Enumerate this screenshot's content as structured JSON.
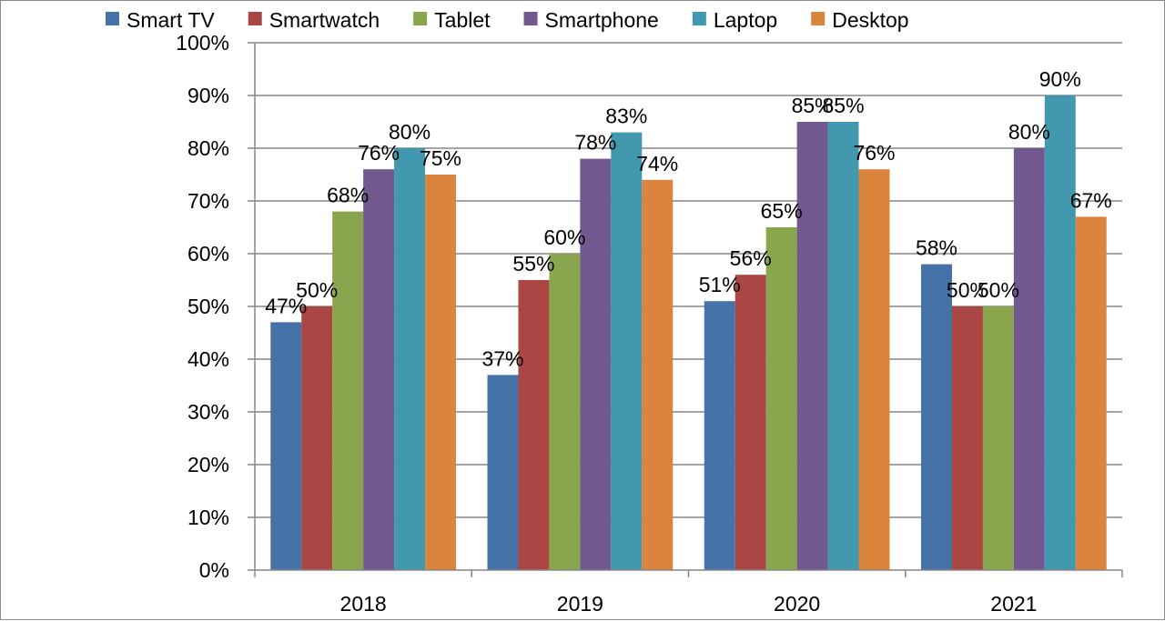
{
  "chart_data": {
    "type": "bar",
    "categories": [
      "2018",
      "2019",
      "2020",
      "2021"
    ],
    "series": [
      {
        "name": "Smart TV",
        "color": "#4572A7",
        "values": [
          47,
          37,
          51,
          58
        ],
        "labels": [
          "47%",
          "37%",
          "51%",
          "58%"
        ]
      },
      {
        "name": "Smartwatch",
        "color": "#AA4643",
        "values": [
          50,
          55,
          56,
          50
        ],
        "labels": [
          "50%",
          "55%",
          "56%",
          "50%"
        ]
      },
      {
        "name": "Tablet",
        "color": "#89A54E",
        "values": [
          68,
          60,
          65,
          50
        ],
        "labels": [
          "68%",
          "60%",
          "65%",
          "50%"
        ]
      },
      {
        "name": "Smartphone",
        "color": "#71588F",
        "values": [
          76,
          78,
          85,
          80
        ],
        "labels": [
          "76%",
          "78%",
          "85%",
          "80%"
        ]
      },
      {
        "name": "Laptop",
        "color": "#4198AF",
        "values": [
          80,
          83,
          85,
          90
        ],
        "labels": [
          "80%",
          "83%",
          "85%",
          "90%"
        ]
      },
      {
        "name": "Desktop",
        "color": "#DB843D",
        "values": [
          75,
          74,
          76,
          67
        ],
        "labels": [
          "75%",
          "74%",
          "76%",
          "67%"
        ]
      }
    ],
    "y_ticks": [
      "0%",
      "10%",
      "20%",
      "30%",
      "40%",
      "50%",
      "60%",
      "70%",
      "80%",
      "90%",
      "100%"
    ],
    "ylim": [
      0,
      100
    ],
    "grid": true,
    "legend_position": "top"
  }
}
